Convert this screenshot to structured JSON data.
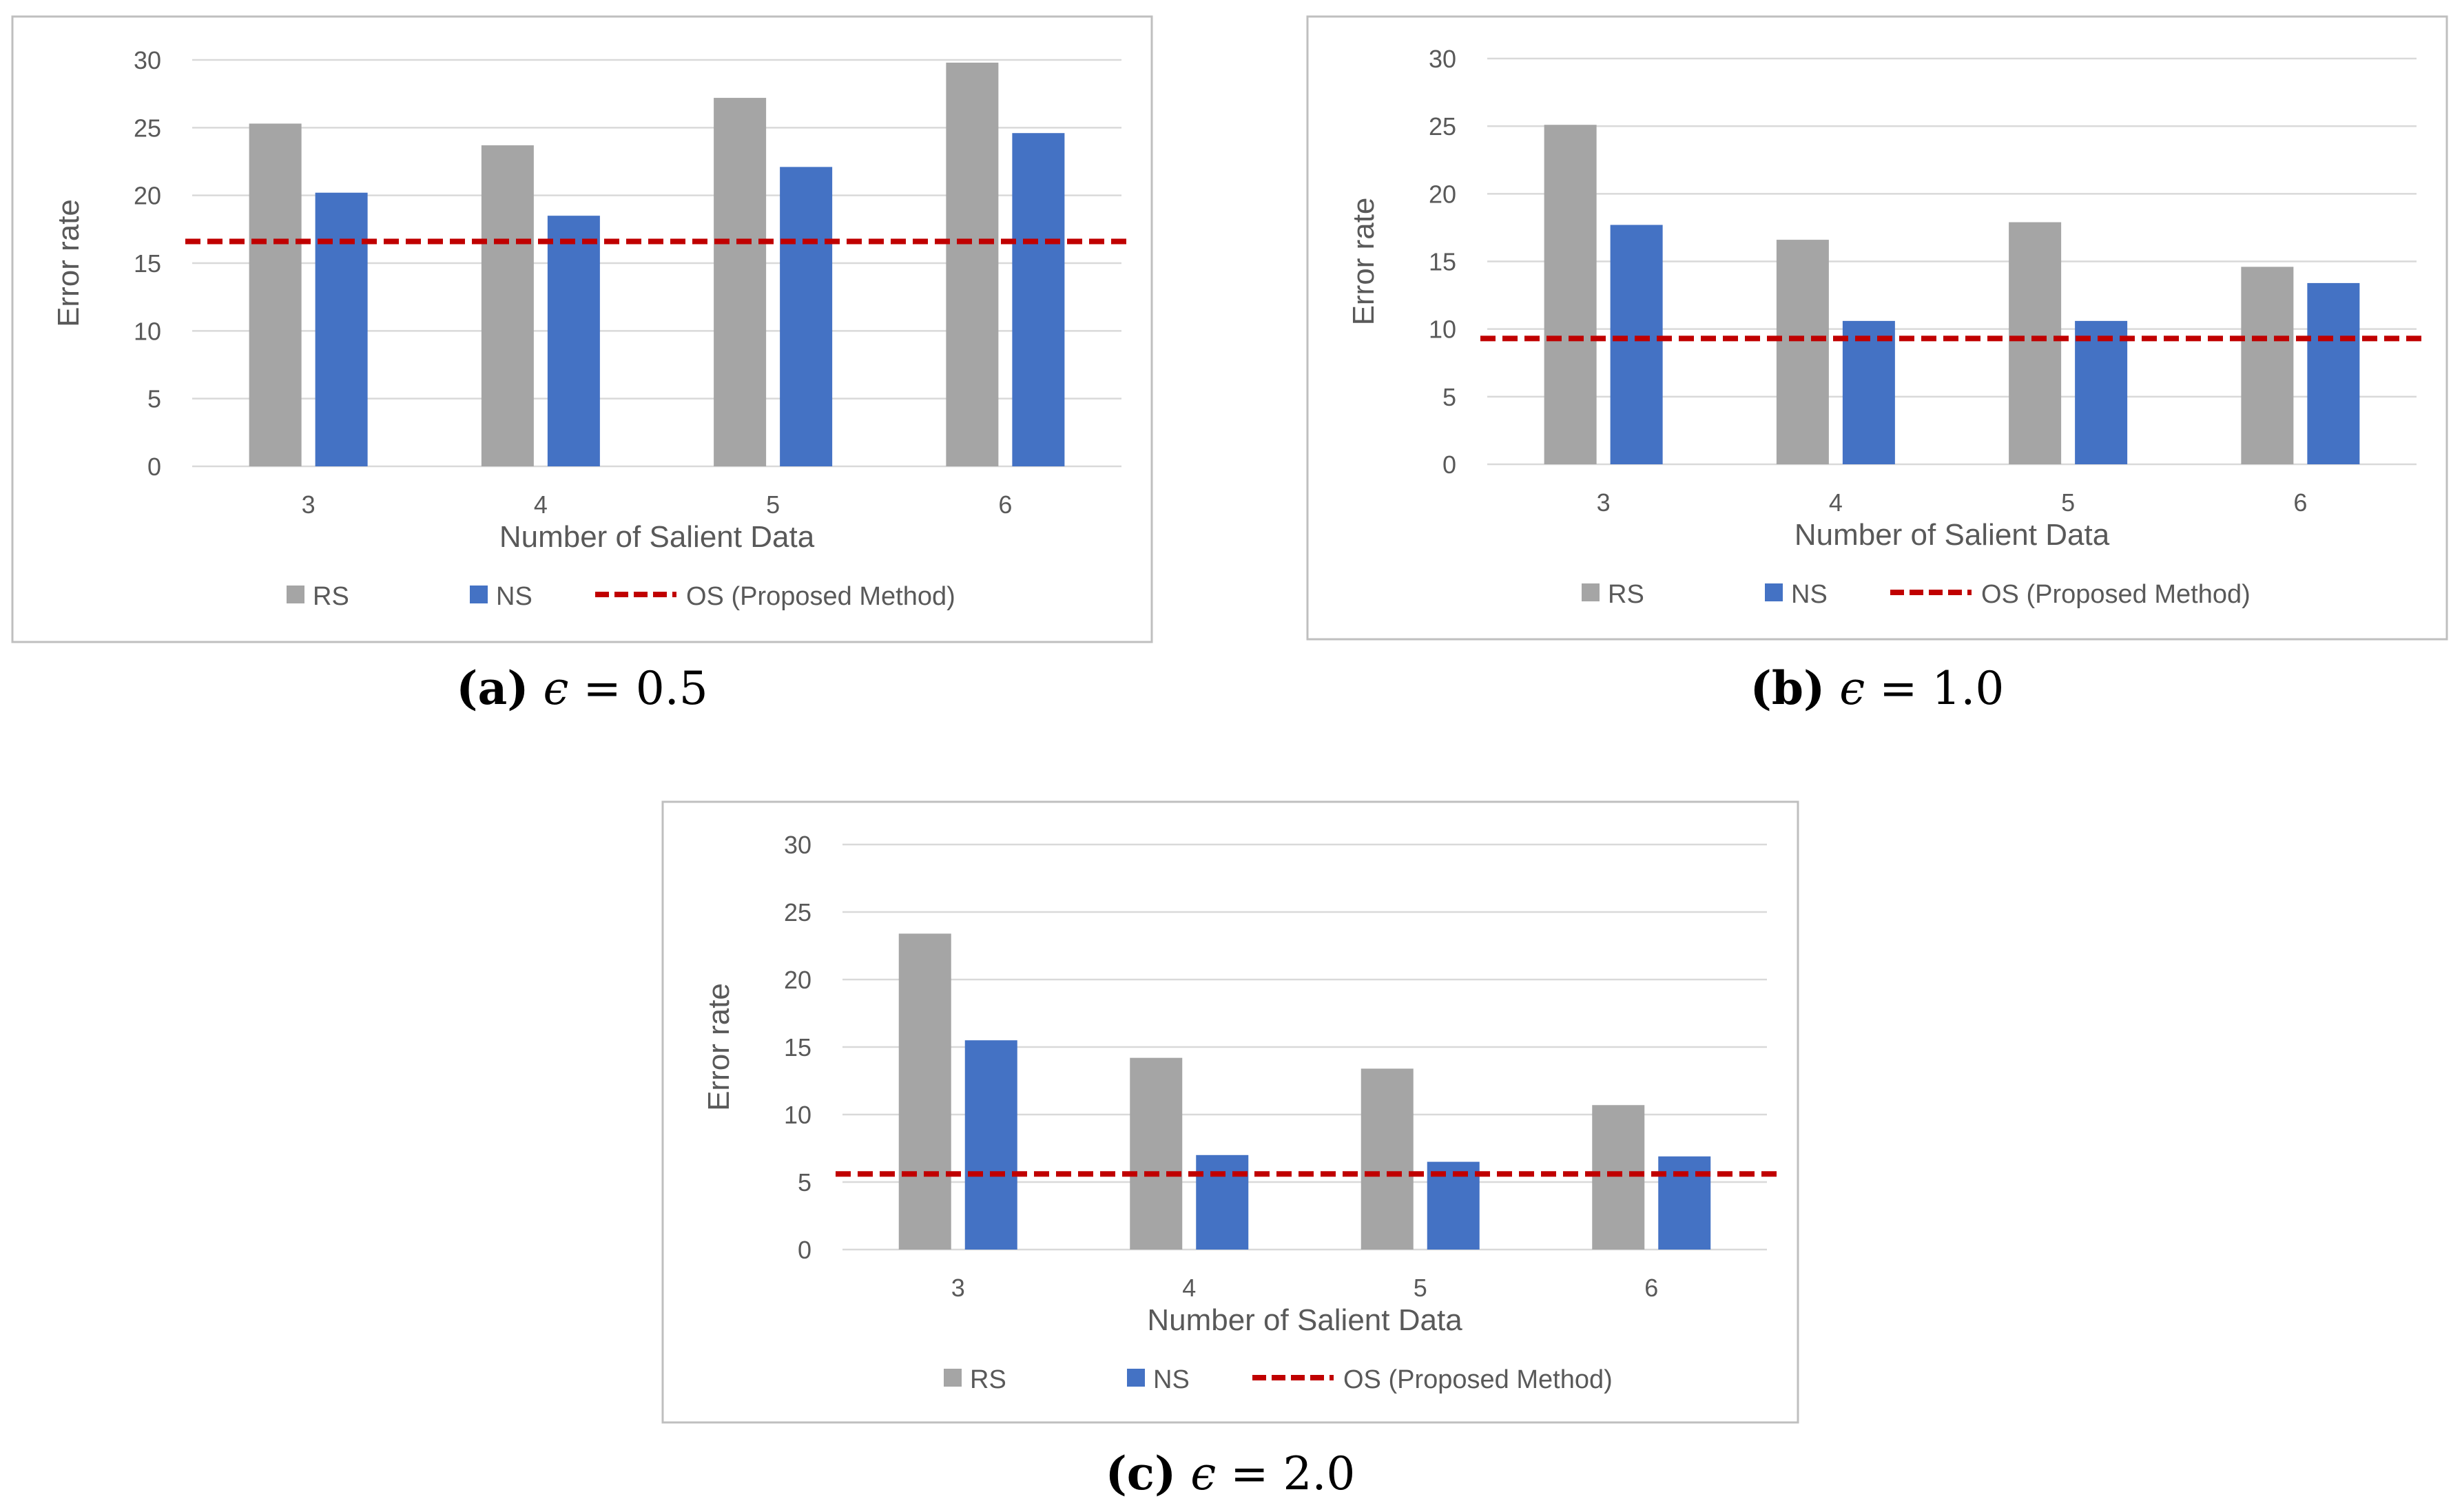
{
  "legend": {
    "rs": "RS",
    "ns": "NS",
    "os": "OS (Proposed Method)"
  },
  "colors": {
    "rs": "#A5A5A5",
    "ns": "#4472C4",
    "os": "#C00000",
    "grid": "#D9D9D9",
    "frame": "#BFBFBF",
    "text": "#595959"
  },
  "chart_data": [
    {
      "type": "bar",
      "panel": "a",
      "caption_label": "(a)",
      "caption_symbol": "ϵ",
      "caption_rest": "= 0.5",
      "categories": [
        "3",
        "4",
        "5",
        "6"
      ],
      "series": [
        {
          "name": "RS",
          "values": [
            25.3,
            23.7,
            27.2,
            29.8
          ]
        },
        {
          "name": "NS",
          "values": [
            20.2,
            18.5,
            22.1,
            24.6
          ]
        }
      ],
      "reference_line": {
        "name": "OS (Proposed Method)",
        "value": 16.6,
        "style": "dashed"
      },
      "xlabel": "Number of Salient Data",
      "ylabel": "Error rate",
      "ylim": [
        0,
        30
      ],
      "yticks": [
        0,
        5,
        10,
        15,
        20,
        25,
        30
      ],
      "grid": true,
      "legend_position": "bottom"
    },
    {
      "type": "bar",
      "panel": "b",
      "caption_label": "(b)",
      "caption_symbol": "ϵ",
      "caption_rest": "= 1.0",
      "categories": [
        "3",
        "4",
        "5",
        "6"
      ],
      "series": [
        {
          "name": "RS",
          "values": [
            25.1,
            16.6,
            17.9,
            14.6
          ]
        },
        {
          "name": "NS",
          "values": [
            17.7,
            10.6,
            10.6,
            13.4
          ]
        }
      ],
      "reference_line": {
        "name": "OS (Proposed Method)",
        "value": 9.3,
        "style": "dashed"
      },
      "xlabel": "Number of Salient Data",
      "ylabel": "Error rate",
      "ylim": [
        0,
        30
      ],
      "yticks": [
        0,
        5,
        10,
        15,
        20,
        25,
        30
      ],
      "grid": true,
      "legend_position": "bottom"
    },
    {
      "type": "bar",
      "panel": "c",
      "caption_label": "(c)",
      "caption_symbol": "ϵ",
      "caption_rest": "= 2.0",
      "categories": [
        "3",
        "4",
        "5",
        "6"
      ],
      "series": [
        {
          "name": "RS",
          "values": [
            23.4,
            14.2,
            13.4,
            10.7
          ]
        },
        {
          "name": "NS",
          "values": [
            15.5,
            7.0,
            6.5,
            6.9
          ]
        }
      ],
      "reference_line": {
        "name": "OS (Proposed Method)",
        "value": 5.6,
        "style": "dashed"
      },
      "xlabel": "Number of Salient Data",
      "ylabel": "Error rate",
      "ylim": [
        0,
        30
      ],
      "yticks": [
        0,
        5,
        10,
        15,
        20,
        25,
        30
      ],
      "grid": true,
      "legend_position": "bottom"
    }
  ]
}
